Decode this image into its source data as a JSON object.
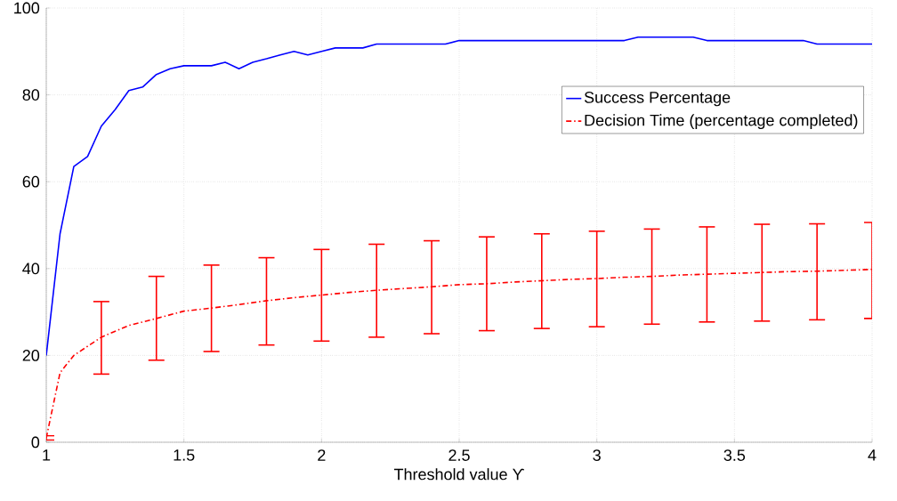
{
  "chart_data": {
    "type": "line",
    "xlabel": "Threshold value ϒ",
    "xlim": [
      1,
      4
    ],
    "ylim": [
      0,
      100
    ],
    "xticks": [
      1,
      1.5,
      2,
      2.5,
      3,
      3.5,
      4
    ],
    "yticks": [
      0,
      20,
      40,
      60,
      80,
      100
    ],
    "grid": true,
    "legend": "top right",
    "series": [
      {
        "name": "Success Percentage",
        "color": "#0000ff",
        "line_style": "solid",
        "x": [
          1,
          1.05,
          1.1,
          1.15,
          1.2,
          1.25,
          1.3,
          1.35,
          1.4,
          1.45,
          1.5,
          1.55,
          1.6,
          1.65,
          1.7,
          1.75,
          1.8,
          1.85,
          1.9,
          1.95,
          2,
          2.05,
          2.1,
          2.15,
          2.2,
          2.25,
          2.3,
          2.35,
          2.4,
          2.45,
          2.5,
          2.6,
          2.7,
          2.8,
          2.9,
          3,
          3.1,
          3.15,
          3.2,
          3.25,
          3.3,
          3.35,
          3.4,
          3.5,
          3.6,
          3.7,
          3.75,
          3.8,
          3.9,
          4
        ],
        "values": [
          20,
          48,
          63.5,
          65.8,
          72.8,
          76.6,
          81,
          81.8,
          84.7,
          86,
          86.7,
          86.7,
          86.7,
          87.5,
          86,
          87.5,
          88.3,
          89.2,
          90,
          89.2,
          90,
          90.8,
          90.8,
          90.8,
          91.7,
          91.7,
          91.7,
          91.7,
          91.7,
          91.7,
          92.5,
          92.5,
          92.5,
          92.5,
          92.5,
          92.5,
          92.5,
          93.3,
          93.3,
          93.3,
          93.3,
          93.3,
          92.5,
          92.5,
          92.5,
          92.5,
          92.5,
          91.7,
          91.7,
          91.7
        ]
      },
      {
        "name": "Decision Time (percentage completed)",
        "color": "#ff0000",
        "line_style": "dashdot",
        "x": [
          1,
          1.05,
          1.1,
          1.2,
          1.3,
          1.4,
          1.5,
          1.6,
          1.7,
          1.8,
          1.9,
          2,
          2.1,
          2.2,
          2.3,
          2.4,
          2.5,
          2.6,
          2.7,
          2.8,
          2.9,
          3,
          3.1,
          3.2,
          3.3,
          3.4,
          3.5,
          3.6,
          3.7,
          3.8,
          3.9,
          4
        ],
        "values": [
          1,
          16,
          20,
          24.2,
          26.9,
          28.5,
          30.2,
          30.9,
          31.7,
          32.6,
          33.3,
          33.9,
          34.5,
          35,
          35.4,
          35.8,
          36.3,
          36.5,
          36.9,
          37.2,
          37.5,
          37.7,
          38,
          38.2,
          38.5,
          38.7,
          38.9,
          39.1,
          39.3,
          39.4,
          39.6,
          39.8
        ],
        "errors": [
          [
            0.5,
            1.5
          ],
          null,
          null,
          [
            15.7,
            32.4
          ],
          null,
          [
            18.9,
            38.2
          ],
          null,
          [
            20.9,
            40.8
          ],
          null,
          [
            22.4,
            42.5
          ],
          null,
          [
            23.3,
            44.4
          ],
          null,
          [
            24.2,
            45.6
          ],
          null,
          [
            25,
            46.4
          ],
          null,
          [
            25.7,
            47.3
          ],
          null,
          [
            26.2,
            48
          ],
          null,
          [
            26.6,
            48.6
          ],
          null,
          [
            27.2,
            49.1
          ],
          null,
          [
            27.7,
            49.6
          ],
          null,
          [
            27.9,
            50.2
          ],
          null,
          [
            28.2,
            50.3
          ],
          null,
          [
            28.5,
            50.6
          ]
        ]
      }
    ]
  }
}
